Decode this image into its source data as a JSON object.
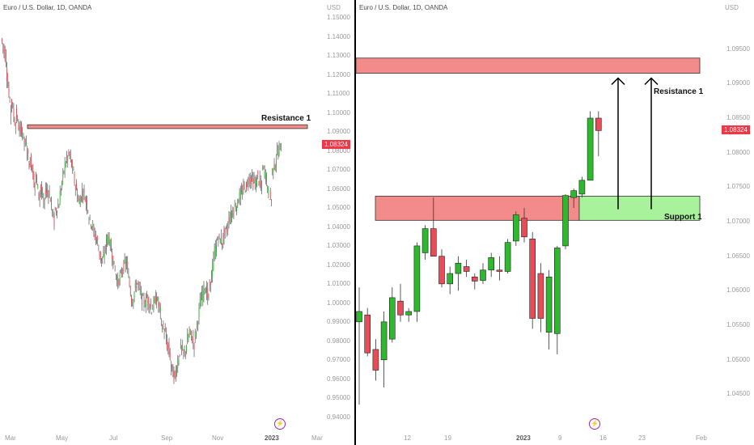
{
  "colors": {
    "up": "#2eb82e",
    "down": "#e84d57",
    "wick": "#5a5a5a",
    "resistance_fill": "#f48b8b",
    "support_fill": "#a7f29a",
    "price_tag": "#f23645",
    "logo": "#9c27b0"
  },
  "left": {
    "header": "Euro / U.S. Dollar, 1D, OANDA",
    "currency": "USD",
    "price_tag": "1.08324",
    "logo_icon": "lightning-icon",
    "zone_labels": {
      "resistance": "Resistance 1"
    }
  },
  "right": {
    "header": "Euro / U.S. Dollar, 1D, OANDA",
    "currency": "USD",
    "price_tag": "1.08324",
    "logo_icon": "lightning-icon",
    "zone_labels": {
      "resistance": "Resistance 1",
      "support": "Support 1"
    }
  },
  "chart_data": [
    {
      "type": "candlestick",
      "title": "Euro / U.S. Dollar, 1D, OANDA",
      "ylabel": "USD",
      "ylim": [
        0.94,
        1.15
      ],
      "y_ticks": [
        "1.15000",
        "1.14000",
        "1.13000",
        "1.12000",
        "1.11000",
        "1.10000",
        "1.09000",
        "1.08000",
        "1.07000",
        "1.06000",
        "1.05000",
        "1.04000",
        "1.03000",
        "1.02000",
        "1.01000",
        "1.00000",
        "0.99000",
        "0.98000",
        "0.97000",
        "0.96000",
        "0.95000",
        "0.94000"
      ],
      "x_ticks": [
        "Mar",
        "May",
        "Jul",
        "Sep",
        "Nov",
        "2023",
        "Mar"
      ],
      "last_price": 1.08324,
      "zones": [
        {
          "name": "Resistance 1",
          "low": 1.0918,
          "high": 1.0938
        }
      ],
      "price_path": [
        [
          1.139,
          1.128
        ],
        [
          1.125,
          1.098
        ],
        [
          1.108,
          1.092
        ],
        [
          1.1,
          1.088
        ],
        [
          1.094,
          1.082
        ],
        [
          1.086,
          1.07
        ],
        [
          1.078,
          1.06
        ],
        [
          1.068,
          1.055
        ],
        [
          1.062,
          1.05
        ],
        [
          1.06,
          1.058
        ],
        [
          1.056,
          1.042
        ],
        [
          1.048,
          1.052
        ],
        [
          1.054,
          1.07
        ],
        [
          1.072,
          1.078
        ],
        [
          1.079,
          1.068
        ],
        [
          1.066,
          1.054
        ],
        [
          1.052,
          1.06
        ],
        [
          1.058,
          1.05
        ],
        [
          1.046,
          1.04
        ],
        [
          1.038,
          1.032
        ],
        [
          1.03,
          1.02
        ],
        [
          1.022,
          1.035
        ],
        [
          1.036,
          1.026
        ],
        [
          1.024,
          1.012
        ],
        [
          1.01,
          1.016
        ],
        [
          1.018,
          1.022
        ],
        [
          1.02,
          1.002
        ],
        [
          1.0,
          1.01
        ],
        [
          1.012,
          1.004
        ],
        [
          1.002,
          1.0
        ],
        [
          1.004,
          0.998
        ],
        [
          0.996,
          1.002
        ],
        [
          1.004,
          0.995
        ],
        [
          0.99,
          0.984
        ],
        [
          0.982,
          0.972
        ],
        [
          0.968,
          0.96
        ],
        [
          0.962,
          0.975
        ],
        [
          0.978,
          0.972
        ],
        [
          0.974,
          0.985
        ],
        [
          0.985,
          0.978
        ],
        [
          0.98,
          0.996
        ],
        [
          0.998,
          1.008
        ],
        [
          1.01,
          1.002
        ],
        [
          1.006,
          1.022
        ],
        [
          1.024,
          1.036
        ],
        [
          1.034,
          1.032
        ],
        [
          1.036,
          1.04
        ],
        [
          1.044,
          1.048
        ],
        [
          1.05,
          1.052
        ],
        [
          1.055,
          1.058
        ],
        [
          1.06,
          1.062
        ],
        [
          1.065,
          1.066
        ],
        [
          1.064,
          1.063
        ],
        [
          1.068,
          1.059
        ],
        [
          1.072,
          1.066
        ],
        [
          1.06,
          1.054
        ],
        [
          1.068,
          1.076
        ],
        [
          1.078,
          1.083
        ]
      ]
    },
    {
      "type": "candlestick",
      "title": "Euro / U.S. Dollar, 1D, OANDA",
      "ylabel": "USD",
      "ylim": [
        1.042,
        1.1
      ],
      "y_ticks": [
        "1.09500",
        "1.09000",
        "1.08500",
        "1.08000",
        "1.07500",
        "1.07000",
        "1.06500",
        "1.06000",
        "1.05500",
        "1.05000",
        "1.04500"
      ],
      "x_ticks": [
        "12",
        "19",
        "2023",
        "9",
        "16",
        "23",
        "Feb"
      ],
      "last_price": 1.08324,
      "zones": [
        {
          "name": "Resistance 1",
          "low": 1.0915,
          "high": 1.0937
        },
        {
          "name": "Support 1",
          "low": 1.0702,
          "high": 1.0737
        }
      ],
      "candles": [
        {
          "open": 1.0555,
          "high": 1.0605,
          "low": 1.0435,
          "close": 1.057
        },
        {
          "open": 1.0565,
          "high": 1.0575,
          "low": 1.0505,
          "close": 1.051
        },
        {
          "open": 1.0515,
          "high": 1.053,
          "low": 1.047,
          "close": 1.0485
        },
        {
          "open": 1.05,
          "high": 1.057,
          "low": 1.046,
          "close": 1.0555
        },
        {
          "open": 1.053,
          "high": 1.0605,
          "low": 1.0525,
          "close": 1.059
        },
        {
          "open": 1.0585,
          "high": 1.061,
          "low": 1.0555,
          "close": 1.0565
        },
        {
          "open": 1.0565,
          "high": 1.0575,
          "low": 1.0555,
          "close": 1.057
        },
        {
          "open": 1.057,
          "high": 1.067,
          "low": 1.0555,
          "close": 1.0665
        },
        {
          "open": 1.0655,
          "high": 1.0695,
          "low": 1.0645,
          "close": 1.069
        },
        {
          "open": 1.069,
          "high": 1.0735,
          "low": 1.065,
          "close": 1.065
        },
        {
          "open": 1.065,
          "high": 1.066,
          "low": 1.0605,
          "close": 1.061
        },
        {
          "open": 1.061,
          "high": 1.0635,
          "low": 1.0595,
          "close": 1.0625
        },
        {
          "open": 1.0625,
          "high": 1.065,
          "low": 1.06,
          "close": 1.064
        },
        {
          "open": 1.0635,
          "high": 1.0645,
          "low": 1.062,
          "close": 1.0628
        },
        {
          "open": 1.062,
          "high": 1.0625,
          "low": 1.0602,
          "close": 1.0614
        },
        {
          "open": 1.0615,
          "high": 1.064,
          "low": 1.061,
          "close": 1.063
        },
        {
          "open": 1.063,
          "high": 1.0655,
          "low": 1.062,
          "close": 1.0648
        },
        {
          "open": 1.063,
          "high": 1.065,
          "low": 1.0615,
          "close": 1.0628
        },
        {
          "open": 1.0628,
          "high": 1.0675,
          "low": 1.0625,
          "close": 1.067
        },
        {
          "open": 1.0672,
          "high": 1.0715,
          "low": 1.0665,
          "close": 1.071
        },
        {
          "open": 1.0705,
          "high": 1.072,
          "low": 1.067,
          "close": 1.0678
        },
        {
          "open": 1.0675,
          "high": 1.0685,
          "low": 1.0545,
          "close": 1.056
        },
        {
          "open": 1.0625,
          "high": 1.064,
          "low": 1.054,
          "close": 1.056
        },
        {
          "open": 1.054,
          "high": 1.063,
          "low": 1.0515,
          "close": 1.062
        },
        {
          "open": 1.0538,
          "high": 1.0665,
          "low": 1.0508,
          "close": 1.0662
        },
        {
          "open": 1.0665,
          "high": 1.074,
          "low": 1.066,
          "close": 1.0738
        },
        {
          "open": 1.0735,
          "high": 1.0748,
          "low": 1.072,
          "close": 1.0745
        },
        {
          "open": 1.074,
          "high": 1.0765,
          "low": 1.0735,
          "close": 1.076
        },
        {
          "open": 1.076,
          "high": 1.086,
          "low": 1.076,
          "close": 1.085
        },
        {
          "open": 1.085,
          "high": 1.086,
          "low": 1.0795,
          "close": 1.0832
        }
      ]
    }
  ]
}
